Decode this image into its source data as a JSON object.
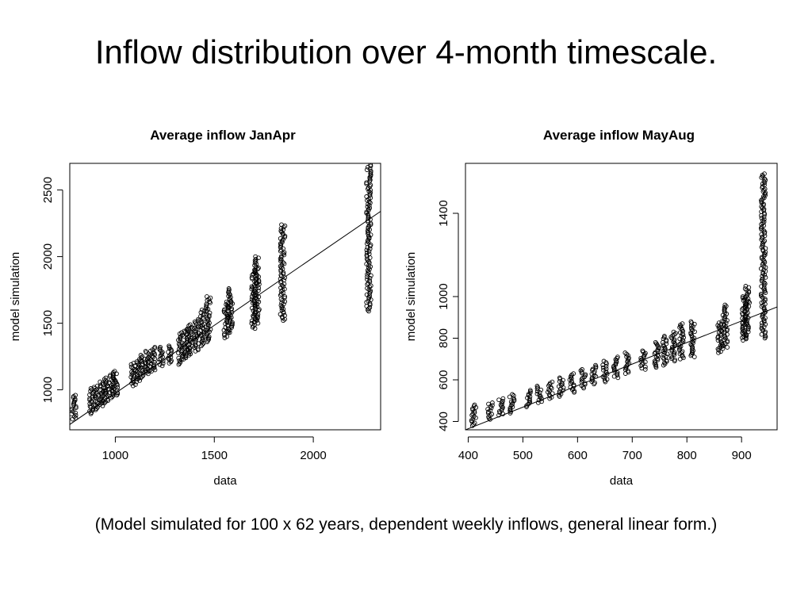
{
  "slide": {
    "title": "Inflow distribution over 4-month timescale.",
    "caption": "(Model simulated for 100 x 62 years, dependent weekly inflows, general linear form.)"
  },
  "chart_data": [
    {
      "type": "scatter",
      "title": "Average inflow JanApr",
      "xlabel": "data",
      "ylabel": "model simulation",
      "xlim": [
        770,
        2340
      ],
      "ylim": [
        700,
        2700
      ],
      "xticks": [
        1000,
        1500,
        2000
      ],
      "yticks": [
        1000,
        1500,
        2000,
        2500
      ],
      "point_style": "open-circle",
      "color": "#000000",
      "clusters": [
        {
          "x": 790,
          "ymin": 780,
          "ymax": 960
        },
        {
          "x": 880,
          "ymin": 820,
          "ymax": 1010
        },
        {
          "x": 905,
          "ymin": 850,
          "ymax": 1030
        },
        {
          "x": 930,
          "ymin": 880,
          "ymax": 1060
        },
        {
          "x": 955,
          "ymin": 900,
          "ymax": 1090
        },
        {
          "x": 980,
          "ymin": 940,
          "ymax": 1120
        },
        {
          "x": 1000,
          "ymin": 960,
          "ymax": 1140
        },
        {
          "x": 1090,
          "ymin": 1030,
          "ymax": 1200
        },
        {
          "x": 1115,
          "ymin": 1060,
          "ymax": 1230
        },
        {
          "x": 1140,
          "ymin": 1090,
          "ymax": 1260
        },
        {
          "x": 1165,
          "ymin": 1120,
          "ymax": 1290
        },
        {
          "x": 1190,
          "ymin": 1140,
          "ymax": 1320
        },
        {
          "x": 1230,
          "ymin": 1180,
          "ymax": 1320
        },
        {
          "x": 1275,
          "ymin": 1200,
          "ymax": 1330
        },
        {
          "x": 1330,
          "ymin": 1190,
          "ymax": 1430
        },
        {
          "x": 1355,
          "ymin": 1230,
          "ymax": 1460
        },
        {
          "x": 1380,
          "ymin": 1260,
          "ymax": 1490
        },
        {
          "x": 1410,
          "ymin": 1290,
          "ymax": 1530
        },
        {
          "x": 1440,
          "ymin": 1330,
          "ymax": 1600
        },
        {
          "x": 1470,
          "ymin": 1360,
          "ymax": 1700
        },
        {
          "x": 1560,
          "ymin": 1390,
          "ymax": 1660
        },
        {
          "x": 1580,
          "ymin": 1430,
          "ymax": 1760
        },
        {
          "x": 1700,
          "ymin": 1460,
          "ymax": 1900
        },
        {
          "x": 1715,
          "ymin": 1500,
          "ymax": 2000
        },
        {
          "x": 1845,
          "ymin": 1520,
          "ymax": 2240
        },
        {
          "x": 2280,
          "ymin": 1590,
          "ymax": 2690
        }
      ],
      "fit_line": {
        "x1": 770,
        "y1": 740,
        "x2": 2340,
        "y2": 2340
      }
    },
    {
      "type": "scatter",
      "title": "Average inflow MayAug",
      "xlabel": "data",
      "ylabel": "model simulation",
      "xlim": [
        395,
        965
      ],
      "ylim": [
        360,
        1640
      ],
      "xticks": [
        400,
        500,
        600,
        700,
        800,
        900
      ],
      "yticks": [
        400,
        600,
        800,
        1000,
        1400
      ],
      "point_style": "open-circle",
      "color": "#000000",
      "clusters": [
        {
          "x": 410,
          "ymin": 380,
          "ymax": 480
        },
        {
          "x": 440,
          "ymin": 410,
          "ymax": 490
        },
        {
          "x": 460,
          "ymin": 430,
          "ymax": 510
        },
        {
          "x": 480,
          "ymin": 440,
          "ymax": 530
        },
        {
          "x": 510,
          "ymin": 470,
          "ymax": 550
        },
        {
          "x": 530,
          "ymin": 490,
          "ymax": 570
        },
        {
          "x": 550,
          "ymin": 510,
          "ymax": 590
        },
        {
          "x": 570,
          "ymin": 520,
          "ymax": 610
        },
        {
          "x": 590,
          "ymin": 540,
          "ymax": 630
        },
        {
          "x": 610,
          "ymin": 560,
          "ymax": 650
        },
        {
          "x": 630,
          "ymin": 580,
          "ymax": 670
        },
        {
          "x": 650,
          "ymin": 590,
          "ymax": 690
        },
        {
          "x": 670,
          "ymin": 610,
          "ymax": 710
        },
        {
          "x": 690,
          "ymin": 630,
          "ymax": 730
        },
        {
          "x": 720,
          "ymin": 650,
          "ymax": 740
        },
        {
          "x": 745,
          "ymin": 660,
          "ymax": 780
        },
        {
          "x": 760,
          "ymin": 670,
          "ymax": 810
        },
        {
          "x": 775,
          "ymin": 690,
          "ymax": 830
        },
        {
          "x": 790,
          "ymin": 700,
          "ymax": 870
        },
        {
          "x": 810,
          "ymin": 710,
          "ymax": 880
        },
        {
          "x": 860,
          "ymin": 730,
          "ymax": 880
        },
        {
          "x": 870,
          "ymin": 750,
          "ymax": 960
        },
        {
          "x": 905,
          "ymin": 790,
          "ymax": 1000
        },
        {
          "x": 910,
          "ymin": 800,
          "ymax": 1050
        },
        {
          "x": 940,
          "ymin": 800,
          "ymax": 1590
        }
      ],
      "fit_line": {
        "x1": 395,
        "y1": 360,
        "x2": 965,
        "y2": 950
      }
    }
  ]
}
